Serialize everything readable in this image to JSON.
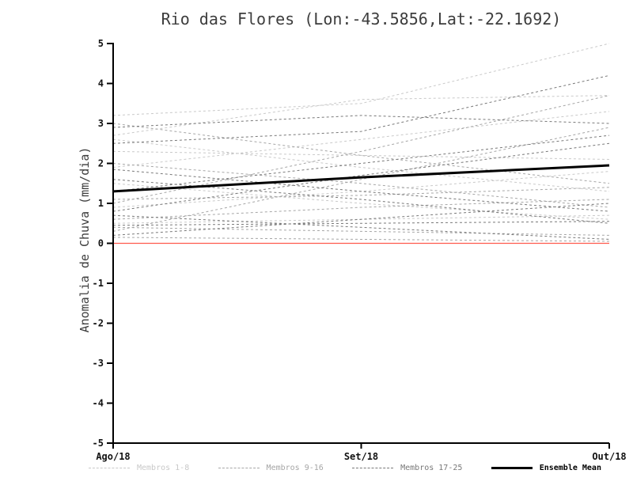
{
  "chart_data": {
    "type": "line",
    "title": "Rio das Flores (Lon:-43.5856,Lat:-22.1692)",
    "ylabel": "Anomalia de Chuva (mm/dia)",
    "xlabel": "",
    "x_categories": [
      "Ago/18",
      "Set/18",
      "Out/18"
    ],
    "ylim": [
      -5,
      5
    ],
    "y_ticks": [
      5,
      4,
      3,
      2,
      1,
      0,
      -1,
      -2,
      -3,
      -4,
      -5
    ],
    "grid": false,
    "legend_position": "bottom",
    "axis_color": "#000000",
    "zero_line": {
      "name": "zero-anomaly-line",
      "color": "#ff5a4d",
      "values": [
        0,
        0,
        0
      ]
    },
    "ensemble_mean": {
      "name": "Ensemble Mean",
      "color": "#000000",
      "values": [
        1.3,
        1.65,
        1.95
      ]
    },
    "member_groups": [
      {
        "name": "Membros 1-8",
        "color": "#c9c9c9",
        "members": [
          [
            3.2,
            3.5,
            5.0
          ],
          [
            2.6,
            1.9,
            1.3
          ],
          [
            1.9,
            2.6,
            3.3
          ],
          [
            0.9,
            1.3,
            1.8
          ],
          [
            2.3,
            2.2,
            2.1
          ],
          [
            0.5,
            0.6,
            0.7
          ],
          [
            1.5,
            1.0,
            0.6
          ],
          [
            2.7,
            3.6,
            3.7
          ]
        ]
      },
      {
        "name": "Membros 9-16",
        "color": "#a6a6a6",
        "members": [
          [
            3.0,
            2.2,
            1.5
          ],
          [
            0.3,
            1.6,
            2.9
          ],
          [
            1.1,
            1.2,
            1.4
          ],
          [
            0.6,
            0.9,
            1.1
          ],
          [
            2.0,
            1.5,
            0.9
          ],
          [
            0.4,
            0.3,
            0.2
          ],
          [
            1.0,
            2.3,
            3.7
          ],
          [
            0.15,
            0.1,
            0.05
          ]
        ]
      },
      {
        "name": "Membros 17-25",
        "color": "#787878",
        "members": [
          [
            2.9,
            3.2,
            3.0
          ],
          [
            0.8,
            1.7,
            2.5
          ],
          [
            1.85,
            1.3,
            0.8
          ],
          [
            0.45,
            0.5,
            0.55
          ],
          [
            1.3,
            2.0,
            2.7
          ],
          [
            0.7,
            0.4,
            0.1
          ],
          [
            2.5,
            2.8,
            4.2
          ],
          [
            0.2,
            0.6,
            1.0
          ],
          [
            1.6,
            1.1,
            0.5
          ]
        ]
      }
    ],
    "legend": [
      {
        "label": "Membros 1-8",
        "color": "#c9c9c9",
        "style": "dashed"
      },
      {
        "label": "Membros 9-16",
        "color": "#a6a6a6",
        "style": "dashed"
      },
      {
        "label": "Membros 17-25",
        "color": "#787878",
        "style": "dashed"
      },
      {
        "label": "Ensemble Mean",
        "color": "#000000",
        "style": "solid"
      }
    ]
  }
}
